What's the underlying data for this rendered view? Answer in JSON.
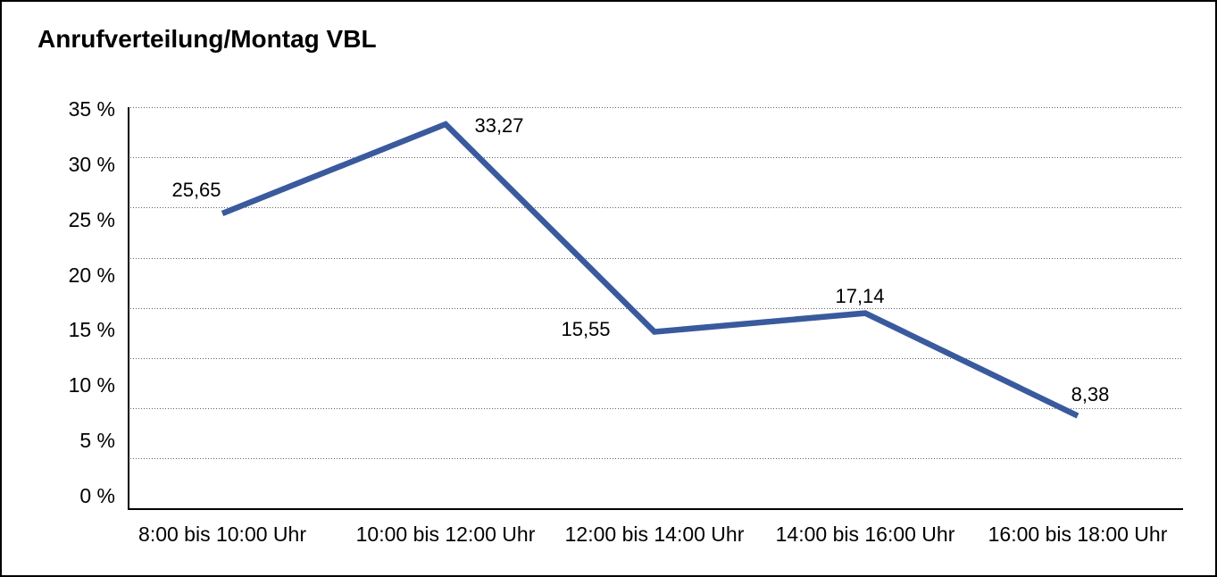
{
  "chart_data": {
    "type": "line",
    "title": "Anrufverteilung/Montag VBL",
    "categories": [
      "8:00 bis 10:00 Uhr",
      "10:00 bis 12:00 Uhr",
      "12:00 bis 14:00 Uhr",
      "14:00 bis 16:00 Uhr",
      "16:00 bis 18:00 Uhr"
    ],
    "values": [
      25.65,
      33.27,
      15.55,
      17.14,
      8.38
    ],
    "value_labels": [
      "25,65",
      "33,27",
      "15,55",
      "17,14",
      "8,38"
    ],
    "series_name": "Anrufverteilung Montag VBL",
    "xlabel": "",
    "ylabel": "",
    "ylim": [
      0,
      35
    ],
    "ytick_step": 5,
    "ytick_labels": [
      "35 %",
      "30 %",
      "25 %",
      "20 %",
      "15 %",
      "10 %",
      "5 %",
      "0 %"
    ],
    "grid": "horizontal-dotted",
    "legend": "none",
    "colors": {
      "line": "#3A5A9E",
      "grid_dots": "#636363",
      "axis": "#000000",
      "text": "#000000",
      "background": "#FFFFFF",
      "border": "#000000"
    }
  }
}
